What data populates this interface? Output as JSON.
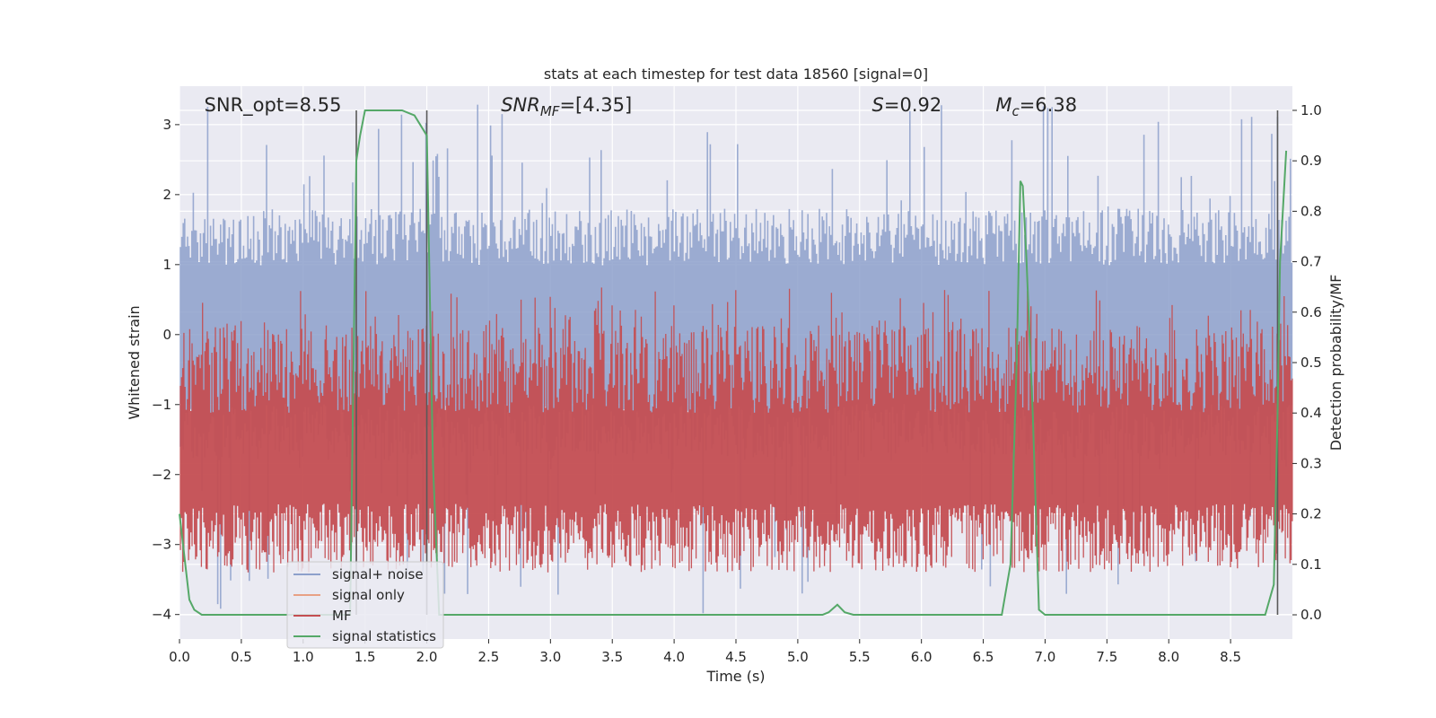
{
  "chart_data": {
    "type": "line",
    "title": "stats at each timestep for test data 18560 [signal=0]",
    "xlabel": "Time (s)",
    "ylabel": "Whitened strain",
    "y2label": "Detection probability/MF",
    "xlim": [
      0,
      9.0
    ],
    "ylim": [
      -4.35,
      3.55
    ],
    "y2lim": [
      -0.048,
      1.048
    ],
    "xticks": [
      0.0,
      0.5,
      1.0,
      1.5,
      2.0,
      2.5,
      3.0,
      3.5,
      4.0,
      4.5,
      5.0,
      5.5,
      6.0,
      6.5,
      7.0,
      7.5,
      8.0,
      8.5
    ],
    "xtick_labels": [
      "0.0",
      "0.5",
      "1.0",
      "1.5",
      "2.0",
      "2.5",
      "3.0",
      "3.5",
      "4.0",
      "4.5",
      "5.0",
      "5.5",
      "6.0",
      "6.5",
      "7.0",
      "7.5",
      "8.0",
      "8.5"
    ],
    "yticks": [
      3,
      2,
      1,
      0,
      -1,
      -2,
      -3,
      -4
    ],
    "ytick_labels": [
      "3",
      "2",
      "1",
      "0",
      "−1",
      "−2",
      "−3",
      "−4"
    ],
    "y2ticks": [
      1.0,
      0.9,
      0.8,
      0.7,
      0.6,
      0.5,
      0.4,
      0.3,
      0.2,
      0.1,
      0.0
    ],
    "y2tick_labels": [
      "1.0",
      "0.9",
      "0.8",
      "0.7",
      "0.6",
      "0.5",
      "0.4",
      "0.3",
      "0.2",
      "0.1",
      "0.0"
    ],
    "annotations": [
      {
        "text": "SNR_opt=8.55",
        "x": 0.2
      },
      {
        "text_main": "SNR",
        "text_sub": "MF",
        "text_rest": "=[4.35]",
        "x": 2.6
      },
      {
        "text_main": "S",
        "text_sub": "",
        "text_rest": "=0.92",
        "x": 5.6
      },
      {
        "text_main": "M",
        "text_sub": "c",
        "text_rest": "=6.38",
        "x": 6.6
      }
    ],
    "noise_band": {
      "typical_min": -1.8,
      "typical_max": 1.8,
      "peak_max": 3.3,
      "peak_min": -4.0
    },
    "mf_band": {
      "typical_min": 0.05,
      "typical_max": 0.65,
      "axis": "right_scaled"
    },
    "vlines": [
      1.43,
      2.0,
      8.88
    ],
    "vline_range": [
      0,
      1
    ],
    "series": [
      {
        "name": "signal+ noise",
        "color": "#8da0cb",
        "kind": "noise"
      },
      {
        "name": "signal only",
        "color": "#e8a185",
        "kind": "empty"
      },
      {
        "name": "MF",
        "color": "#c44e52",
        "kind": "mf"
      },
      {
        "name": "signal statistics",
        "color": "#55a868",
        "axis": "right",
        "x": [
          0.0,
          0.08,
          0.12,
          0.18,
          0.3,
          1.25,
          1.32,
          1.38,
          1.43,
          1.46,
          1.5,
          1.6,
          1.8,
          1.9,
          1.95,
          2.0,
          2.05,
          2.1,
          2.15,
          2.2,
          2.3,
          5.2,
          5.25,
          5.32,
          5.38,
          5.45,
          6.65,
          6.72,
          6.77,
          6.8,
          6.82,
          6.85,
          6.9,
          6.95,
          7.0,
          7.1,
          8.78,
          8.85,
          8.88,
          8.9,
          8.95
        ],
        "y": [
          0.2,
          0.03,
          0.01,
          0.0,
          0.0,
          0.0,
          0.0,
          0.0,
          0.9,
          0.95,
          1.0,
          1.0,
          1.0,
          0.99,
          0.97,
          0.95,
          0.3,
          0.0,
          0.0,
          0.0,
          0.0,
          0.0,
          0.005,
          0.02,
          0.005,
          0.0,
          0.0,
          0.1,
          0.5,
          0.86,
          0.85,
          0.7,
          0.4,
          0.01,
          0.0,
          0.0,
          0.0,
          0.06,
          0.4,
          0.7,
          0.92
        ]
      }
    ],
    "legend_location": "lower-left"
  }
}
